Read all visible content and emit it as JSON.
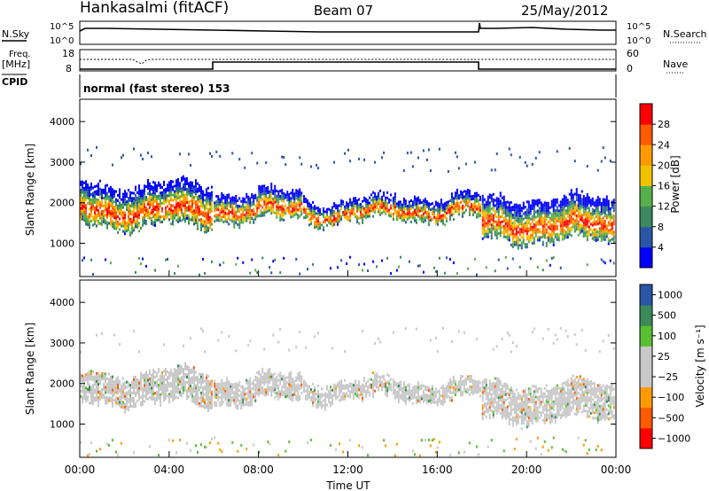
{
  "header": {
    "station": "Hankasalmi (fitACF)",
    "beam": "Beam 07",
    "date": "25/May/2012"
  },
  "top_panels": {
    "nsky_label": "N.Sky",
    "nsearch_label": "N.Search",
    "noise_ticks": [
      "10^5",
      "10^0"
    ],
    "freq_label": "Freq.",
    "freq_unit": "[MHz]",
    "freq_ticks": [
      "18",
      "8"
    ],
    "nave_label": "Nave",
    "nave_ticks": [
      "60",
      "0"
    ],
    "cpid_label": "CPID",
    "cpid_text": "normal (fast stereo) 153"
  },
  "colors": {
    "power_scale": [
      "#0000ff",
      "#2a56a6",
      "#3b8a5f",
      "#56b04a",
      "#f2c200",
      "#ff9a00",
      "#ff5a00",
      "#ff0000"
    ],
    "velocity_scale": [
      "#ff0000",
      "#ff5a00",
      "#ff9a00",
      "#c8c8c8",
      "#c8c8c8",
      "#56c030",
      "#3a8a5a",
      "#2a56a6"
    ]
  },
  "chart_data": [
    {
      "type": "heatmap",
      "name": "power",
      "xlabel": "",
      "ylabel": "Slant Range [km]",
      "colorbar_label": "Power [dB]",
      "colorbar_ticks": [
        "4",
        "8",
        "12",
        "16",
        "20",
        "24",
        "28"
      ],
      "y_ticks": [
        "1000",
        "2000",
        "3000",
        "4000"
      ],
      "ylim": [
        180,
        4550
      ],
      "xlim_hours": [
        0,
        24
      ],
      "bands": [
        {
          "start_h": 0.0,
          "end_h": 6.0,
          "range_km": [
            1350,
            2550
          ]
        },
        {
          "start_h": 6.0,
          "end_h": 10.0,
          "range_km": [
            1500,
            2350
          ]
        },
        {
          "start_h": 10.0,
          "end_h": 14.0,
          "range_km": [
            1500,
            2150
          ]
        },
        {
          "start_h": 14.0,
          "end_h": 18.0,
          "range_km": [
            1550,
            2250
          ]
        },
        {
          "start_h": 18.0,
          "end_h": 24.0,
          "range_km": [
            1000,
            2200
          ]
        }
      ]
    },
    {
      "type": "heatmap",
      "name": "velocity",
      "xlabel": "Time UT",
      "ylabel": "Slant Range [km]",
      "colorbar_label": "Velocity [m s⁻¹]",
      "colorbar_ticks": [
        "1000",
        "500",
        "100",
        "25",
        "−25",
        "−100",
        "−500",
        "−1000"
      ],
      "y_ticks": [
        "1000",
        "2000",
        "3000",
        "4000"
      ],
      "x_ticks": [
        "00:00",
        "04:00",
        "08:00",
        "12:00",
        "16:00",
        "20:00",
        "00:00"
      ],
      "ylim": [
        180,
        4550
      ],
      "xlim_hours": [
        0,
        24
      ],
      "bands": [
        {
          "start_h": 0.0,
          "end_h": 6.0,
          "range_km": [
            1450,
            2350
          ]
        },
        {
          "start_h": 6.0,
          "end_h": 10.0,
          "range_km": [
            1500,
            2250
          ]
        },
        {
          "start_h": 10.0,
          "end_h": 14.0,
          "range_km": [
            1550,
            2150
          ]
        },
        {
          "start_h": 14.0,
          "end_h": 18.0,
          "range_km": [
            1550,
            2150
          ]
        },
        {
          "start_h": 18.0,
          "end_h": 24.0,
          "range_km": [
            1050,
            2050
          ]
        }
      ]
    }
  ]
}
